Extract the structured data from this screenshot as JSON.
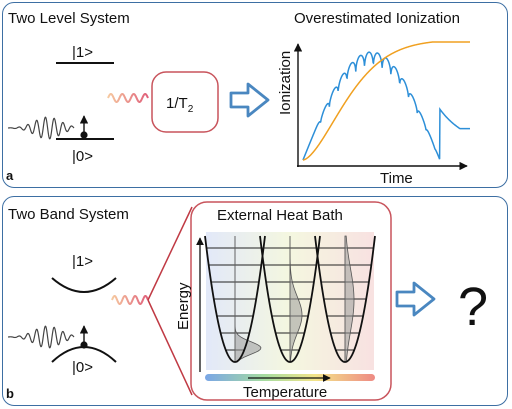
{
  "panel_a": {
    "label": "a",
    "title": "Two Level System",
    "state_upper": "|1>",
    "state_lower": "|0>",
    "relaxation_box": {
      "main": "1/T",
      "subscript": "2"
    },
    "plot_title": "Overestimated Ionization",
    "y_axis_label": "Ionization",
    "x_axis_label": "Time"
  },
  "panel_b": {
    "label": "b",
    "title": "Two Band System",
    "state_upper": "|1>",
    "state_lower": "|0>",
    "bath_title": "External Heat Bath",
    "y_axis_label": "Energy",
    "x_axis_label": "Temperature",
    "outcome_symbol": "?"
  },
  "colors": {
    "border": "#3d6fa3",
    "arrow": "#4a87c0",
    "box_border": "#c8545c",
    "curve_orange": "#f0a020",
    "curve_blue": "#2d8fd8"
  }
}
